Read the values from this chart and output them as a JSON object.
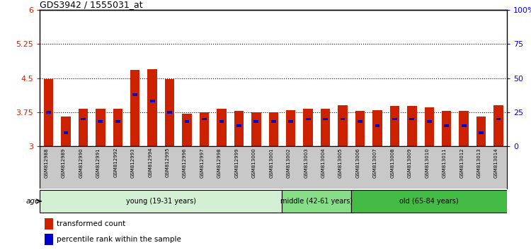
{
  "title": "GDS3942 / 1555031_at",
  "samples": [
    "GSM812988",
    "GSM812989",
    "GSM812990",
    "GSM812991",
    "GSM812992",
    "GSM812993",
    "GSM812994",
    "GSM812995",
    "GSM812996",
    "GSM812997",
    "GSM812998",
    "GSM812999",
    "GSM813000",
    "GSM813001",
    "GSM813002",
    "GSM813003",
    "GSM813004",
    "GSM813005",
    "GSM813006",
    "GSM813007",
    "GSM813008",
    "GSM813009",
    "GSM813010",
    "GSM813011",
    "GSM813012",
    "GSM813013",
    "GSM813014"
  ],
  "transformed_count": [
    4.48,
    3.65,
    3.83,
    3.83,
    3.83,
    4.68,
    4.7,
    4.48,
    3.72,
    3.75,
    3.82,
    3.78,
    3.75,
    3.75,
    3.8,
    3.83,
    3.83,
    3.9,
    3.78,
    3.8,
    3.88,
    3.88,
    3.85,
    3.78,
    3.78,
    3.65,
    3.9
  ],
  "percentile_rank": [
    25,
    10,
    20,
    18,
    18,
    38,
    33,
    25,
    18,
    20,
    18,
    15,
    18,
    18,
    18,
    20,
    20,
    20,
    18,
    15,
    20,
    20,
    18,
    15,
    15,
    10,
    20
  ],
  "bar_color": "#cc2200",
  "percentile_color": "#0000cc",
  "ylim_left": [
    3.0,
    6.0
  ],
  "ylim_right": [
    0,
    100
  ],
  "yticks_left": [
    3.0,
    3.75,
    4.5,
    5.25,
    6.0
  ],
  "ytick_labels_left": [
    "3",
    "3.75",
    "4.5",
    "5.25",
    "6"
  ],
  "yticks_right": [
    0,
    25,
    50,
    75,
    100
  ],
  "ytick_labels_right": [
    "0",
    "25",
    "50",
    "75",
    "100%"
  ],
  "gridlines": [
    3.75,
    4.5,
    5.25
  ],
  "age_groups": [
    {
      "label": "young (19-31 years)",
      "start": 0,
      "end": 14,
      "color": "#d4f0d4"
    },
    {
      "label": "middle (42-61 years)",
      "start": 14,
      "end": 18,
      "color": "#88dd88"
    },
    {
      "label": "old (65-84 years)",
      "start": 18,
      "end": 27,
      "color": "#44bb44"
    }
  ],
  "legend_items": [
    {
      "label": "transformed count",
      "color": "#cc2200"
    },
    {
      "label": "percentile rank within the sample",
      "color": "#0000cc"
    }
  ],
  "bar_width": 0.55,
  "xtick_bg": "#c8c8c8"
}
